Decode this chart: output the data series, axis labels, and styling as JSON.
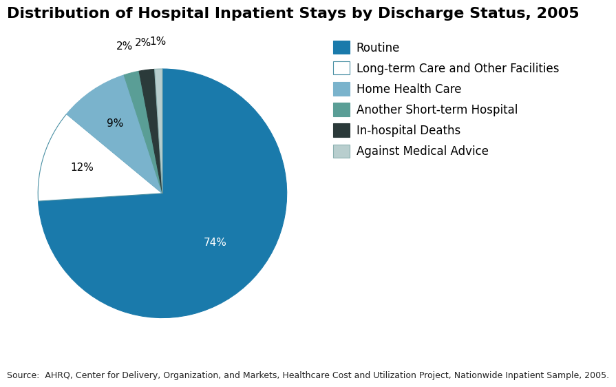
{
  "title": "Distribution of Hospital Inpatient Stays by Discharge Status, 2005",
  "source": "Source:  AHRQ, Center for Delivery, Organization, and Markets, Healthcare Cost and Utilization Project, Nationwide Inpatient Sample, 2005.",
  "slices": [
    74,
    12,
    9,
    2,
    2,
    1
  ],
  "labels": [
    "74%",
    "12%",
    "9%",
    "2%",
    "2%",
    "1%"
  ],
  "colors": [
    "#1a7aab",
    "#ffffff",
    "#7ab3cc",
    "#5a9e96",
    "#2b3a3a",
    "#b8cece"
  ],
  "legend_labels": [
    "Routine",
    "Long-term Care and Other Facilities",
    "Home Health Care",
    "Another Short-term Hospital",
    "In-hospital Deaths",
    "Against Medical Advice"
  ],
  "legend_colors": [
    "#1a7aab",
    "#ffffff",
    "#7ab3cc",
    "#5a9e96",
    "#2b3a3a",
    "#b8cece"
  ],
  "legend_edge_colors": [
    "#1a7aab",
    "#4a90a4",
    "#7ab3cc",
    "#5a9e96",
    "#2b3a3a",
    "#8ab0b0"
  ],
  "label_colors": [
    "#ffffff",
    "#000000",
    "#000000",
    "#000000",
    "#000000",
    "#000000"
  ],
  "label_r_inside": [
    0.58,
    0.68,
    0.68,
    1.22,
    1.22,
    1.22
  ],
  "startangle": 90,
  "background_color": "#ffffff",
  "title_fontsize": 16,
  "label_fontsize": 11,
  "legend_fontsize": 12,
  "source_fontsize": 9
}
